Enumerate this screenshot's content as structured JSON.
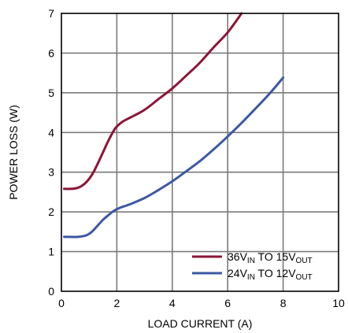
{
  "chart_data": {
    "type": "line",
    "xlabel": "LOAD CURRENT (A)",
    "ylabel": "POWER LOSS (W)",
    "xlim": [
      0,
      10
    ],
    "ylim": [
      0,
      7
    ],
    "x_ticks": [
      0,
      2,
      4,
      6,
      8,
      10
    ],
    "y_ticks": [
      0,
      1,
      2,
      3,
      4,
      5,
      6,
      7
    ],
    "grid": true,
    "legend_position": "bottom-right",
    "series": [
      {
        "name": "36VIN TO 15VOUT",
        "legend": {
          "a": "36V",
          "a_sub": "IN",
          "b": " TO 15V",
          "b_sub": "OUT"
        },
        "color": "#8c1538",
        "x": [
          0.1,
          0.3,
          0.5,
          0.7,
          0.9,
          1.1,
          1.3,
          1.5,
          1.7,
          1.9,
          2.0,
          2.2,
          2.5,
          3.0,
          3.5,
          4.0,
          4.5,
          5.0,
          5.5,
          6.0,
          6.5
        ],
        "y": [
          2.58,
          2.58,
          2.59,
          2.64,
          2.75,
          2.93,
          3.2,
          3.5,
          3.8,
          4.06,
          4.15,
          4.27,
          4.38,
          4.57,
          4.84,
          5.11,
          5.43,
          5.76,
          6.15,
          6.52,
          7.0
        ]
      },
      {
        "name": "24VIN TO 12VOUT",
        "legend": {
          "a": "24V",
          "a_sub": "IN",
          "b": " TO 12V",
          "b_sub": "OUT"
        },
        "color": "#3d58a3",
        "x": [
          0.1,
          0.3,
          0.6,
          0.9,
          1.1,
          1.3,
          1.5,
          1.7,
          1.9,
          2.1,
          2.5,
          3.0,
          3.5,
          4.0,
          4.5,
          5.0,
          5.5,
          6.0,
          6.5,
          7.0,
          7.5,
          8.0
        ],
        "y": [
          1.37,
          1.37,
          1.37,
          1.41,
          1.5,
          1.65,
          1.8,
          1.92,
          2.03,
          2.1,
          2.2,
          2.35,
          2.55,
          2.77,
          3.02,
          3.28,
          3.58,
          3.9,
          4.24,
          4.6,
          4.97,
          5.38
        ]
      }
    ]
  }
}
